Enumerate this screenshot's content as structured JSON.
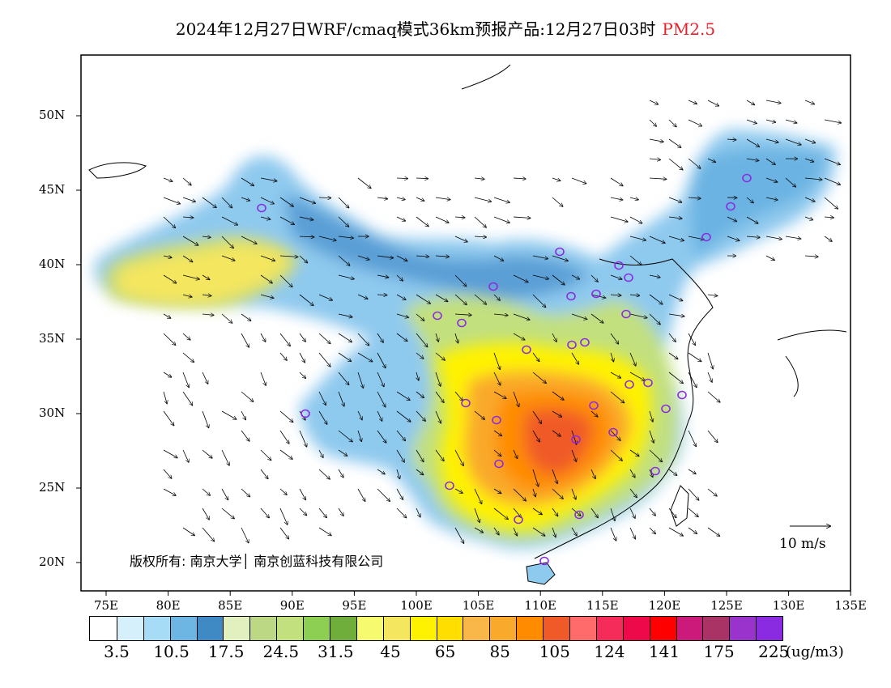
{
  "title": {
    "text": "2024年12月27日WRF/cmaq模式36km预报产品:12月27日03时",
    "pollutant": "PM2.5"
  },
  "lat_labels": [
    "50N",
    "45N",
    "40N",
    "35N",
    "30N",
    "25N",
    "20N"
  ],
  "lon_labels": [
    "75E",
    "80E",
    "85E",
    "90E",
    "95E",
    "100E",
    "105E",
    "110E",
    "115E",
    "120E",
    "125E",
    "130E",
    "135E"
  ],
  "colorbar": {
    "colors": [
      "#ffffff",
      "#d6f0fb",
      "#a6dcf6",
      "#6db6e4",
      "#3f8ac5",
      "#e2efbf",
      "#bcd885",
      "#c2e07e",
      "#8ccf53",
      "#6fae3a",
      "#f5fa6f",
      "#f4e65e",
      "#fff200",
      "#ffde00",
      "#f9b74a",
      "#f9a92b",
      "#ff8c00",
      "#f05a28",
      "#ff6a6a",
      "#f52b5a",
      "#ee0a4a",
      "#ff0000",
      "#cc1a7a",
      "#aa3366",
      "#9933cc",
      "#8a2be2"
    ],
    "labels": [
      "3.5",
      "10.5",
      "17.5",
      "24.5",
      "31.5",
      "45",
      "65",
      "85",
      "105",
      "124",
      "141",
      "175",
      "225"
    ],
    "unit": "(ug/m3)"
  },
  "copyright": "版权所有: 南京大学│ 南京创蓝科技有限公司",
  "wind_legend": "10 m/s",
  "map": {
    "region": "China",
    "stations_icon": "station-circle-icon",
    "wind_icon": "wind-arrow-icon"
  }
}
